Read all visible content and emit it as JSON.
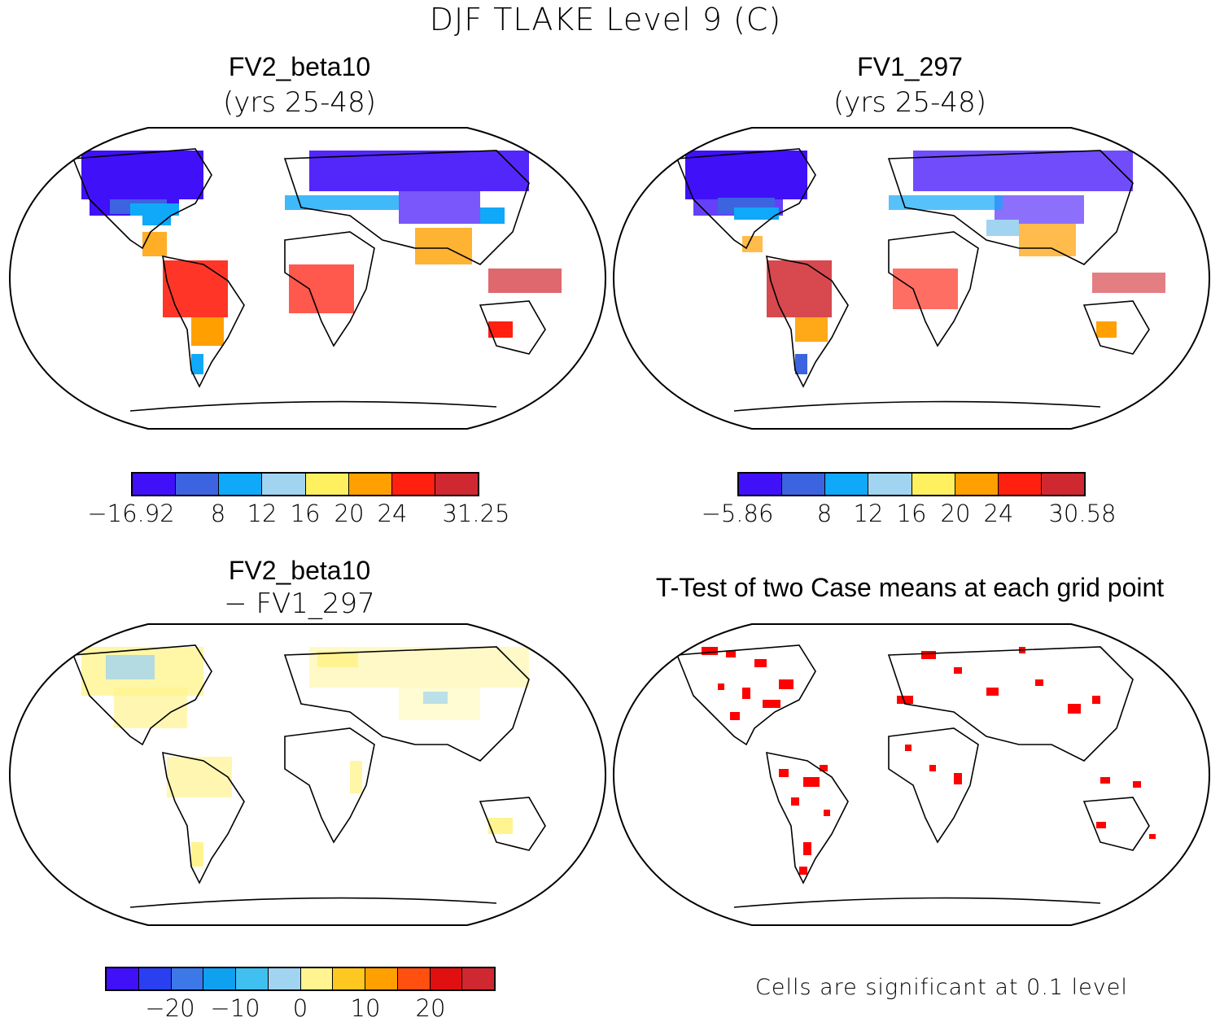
{
  "title": "DJF TLAKE Level 9 (C)",
  "colors": {
    "deep_blue": "#4010f8",
    "royal_blue": "#3c64e0",
    "sky_blue": "#10a8f8",
    "light_blue": "#a0d4f0",
    "yellow": "#fff060",
    "orange": "#ffa000",
    "red": "#ff2010",
    "dark_red": "#d02830",
    "sig_red": "#ff0000"
  },
  "panels": {
    "top_left": {
      "title": "FV2_beta10",
      "subtitle": "(yrs 25-48)",
      "colorbar": {
        "colors": [
          "#4010f8",
          "#3c64e0",
          "#10a8f8",
          "#a0d4f0",
          "#fff060",
          "#ffa000",
          "#ff2010",
          "#d02830"
        ],
        "labels": [
          "−16.92",
          "8",
          "12",
          "16",
          "20",
          "24",
          "31.25"
        ]
      }
    },
    "top_right": {
      "title": "FV1_297",
      "subtitle": "(yrs 25-48)",
      "colorbar": {
        "colors": [
          "#4010f8",
          "#3c64e0",
          "#10a8f8",
          "#a0d4f0",
          "#fff060",
          "#ffa000",
          "#ff2010",
          "#d02830"
        ],
        "labels": [
          "−5.86",
          "8",
          "12",
          "16",
          "20",
          "24",
          "30.58"
        ]
      }
    },
    "bottom_left": {
      "title": "FV2_beta10",
      "subtitle": "− FV1_297",
      "colorbar": {
        "colors": [
          "#4010f8",
          "#2a40f0",
          "#3c78e8",
          "#10a0f0",
          "#40c0f0",
          "#a0d4f0",
          "#fff490",
          "#ffc820",
          "#ffa000",
          "#ff5010",
          "#e01010",
          "#d02830"
        ],
        "labels": [
          "−20",
          "−10",
          "0",
          "10",
          "20"
        ]
      }
    },
    "bottom_right": {
      "title": "T-Test of two Case means at each grid point",
      "note": "Cells are significant at 0.1 level"
    }
  }
}
